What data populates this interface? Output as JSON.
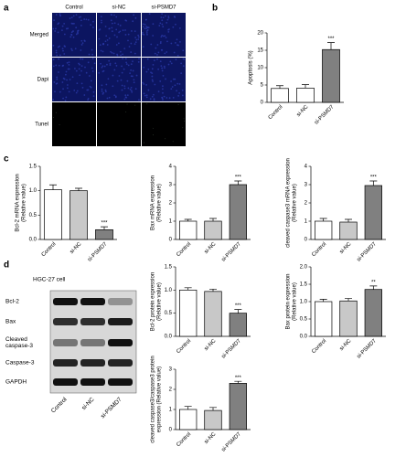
{
  "panel_labels": [
    "a",
    "b",
    "c",
    "d"
  ],
  "microscopy": {
    "columns": [
      "Control",
      "si-NC",
      "si-PSMD7"
    ],
    "rows": [
      "Merged",
      "Dapi",
      "Tunel"
    ]
  },
  "blot": {
    "title": "HGC-27 cell",
    "rows": [
      "Bcl-2",
      "Bax",
      [
        "Cleaved",
        "caspase-3"
      ],
      "Caspase-3",
      "GAPDH"
    ],
    "lanes": [
      "Control",
      "si-NC",
      "si-PSMD7"
    ]
  },
  "chart_data": [
    {
      "type": "bar",
      "ylabel": [
        "Apoptosis (%)"
      ],
      "categories": [
        "Control",
        "si-NC",
        "si-PSMD7"
      ],
      "values": [
        4,
        4.1,
        15.2
      ],
      "errors": [
        0.8,
        1,
        2
      ],
      "value_annotations": [
        null,
        null,
        "***"
      ],
      "colors": [
        "#ffffff",
        "#ffffff",
        "#808080"
      ],
      "ylim": [
        0,
        20
      ],
      "yticks": [
        0,
        5,
        10,
        15,
        20
      ]
    },
    {
      "type": "bar",
      "ylabel": [
        "Bcl-2 mRNA expression",
        "(Relative value)"
      ],
      "categories": [
        "Control",
        "si-NC",
        "si-PSMD7"
      ],
      "values": [
        1.02,
        1,
        0.2
      ],
      "errors": [
        0.1,
        0.05,
        0.06
      ],
      "value_annotations": [
        null,
        null,
        "***"
      ],
      "colors": [
        "#ffffff",
        "#c8c8c8",
        "#808080"
      ],
      "ylim": [
        0,
        1.5
      ],
      "yticks": [
        {
          "value": 0,
          "label": "0.0"
        },
        {
          "value": 0.5,
          "label": "0.5"
        },
        {
          "value": 1,
          "label": "1.0"
        },
        {
          "value": 1.5,
          "label": "1.5"
        }
      ]
    },
    {
      "type": "bar",
      "ylabel": [
        "Bax mRNA expression",
        "(Relative value)"
      ],
      "categories": [
        "Control",
        "si-NC",
        "si-PSMD7"
      ],
      "values": [
        1,
        1,
        3
      ],
      "errors": [
        0.1,
        0.15,
        0.2
      ],
      "value_annotations": [
        null,
        null,
        "***"
      ],
      "colors": [
        "#ffffff",
        "#c8c8c8",
        "#808080"
      ],
      "ylim": [
        0,
        4
      ],
      "yticks": [
        0,
        1,
        2,
        3,
        4
      ]
    },
    {
      "type": "bar",
      "ylabel": [
        "cleaved caspase3 mRNA expression",
        "(Relative value)"
      ],
      "categories": [
        "Control",
        "si-NC",
        "si-PSMD7"
      ],
      "values": [
        1,
        0.95,
        2.95
      ],
      "errors": [
        0.15,
        0.15,
        0.25
      ],
      "value_annotations": [
        null,
        null,
        "***"
      ],
      "colors": [
        "#ffffff",
        "#c8c8c8",
        "#808080"
      ],
      "ylim": [
        0,
        4
      ],
      "yticks": [
        0,
        1,
        2,
        3,
        4
      ]
    },
    {
      "type": "bar",
      "ylabel": [
        "Bcl-2 protein expression",
        "(Relative value)"
      ],
      "categories": [
        "Control",
        "si-NC",
        "si-PSMD7"
      ],
      "values": [
        1,
        0.97,
        0.5
      ],
      "errors": [
        0.05,
        0.05,
        0.08
      ],
      "value_annotations": [
        null,
        null,
        "***"
      ],
      "colors": [
        "#ffffff",
        "#c8c8c8",
        "#808080"
      ],
      "ylim": [
        0,
        1.5
      ],
      "yticks": [
        {
          "value": 0,
          "label": "0.0"
        },
        {
          "value": 0.5,
          "label": "0.5"
        },
        {
          "value": 1,
          "label": "1.0"
        },
        {
          "value": 1.5,
          "label": "1.5"
        }
      ]
    },
    {
      "type": "bar",
      "ylabel": [
        "Bax protein expression",
        "(Relative value)"
      ],
      "categories": [
        "Control",
        "si-NC",
        "si-PSMD7"
      ],
      "values": [
        1,
        1.02,
        1.35
      ],
      "errors": [
        0.07,
        0.07,
        0.1
      ],
      "value_annotations": [
        null,
        null,
        "**"
      ],
      "colors": [
        "#ffffff",
        "#c8c8c8",
        "#808080"
      ],
      "ylim": [
        0,
        2
      ],
      "yticks": [
        {
          "value": 0,
          "label": "0.0"
        },
        {
          "value": 0.5,
          "label": "0.5"
        },
        {
          "value": 1,
          "label": "1.0"
        },
        {
          "value": 1.5,
          "label": "1.5"
        },
        {
          "value": 2,
          "label": "2.0"
        }
      ]
    },
    {
      "type": "bar",
      "ylabel": [
        "cleaved caspase3/caspase3 protein",
        "expression (Relative value)"
      ],
      "categories": [
        "Control",
        "si-NC",
        "si-PSMD7"
      ],
      "values": [
        1,
        0.95,
        2.3
      ],
      "errors": [
        0.15,
        0.15,
        0.1
      ],
      "value_annotations": [
        null,
        null,
        "***"
      ],
      "colors": [
        "#ffffff",
        "#c8c8c8",
        "#808080"
      ],
      "ylim": [
        0,
        3
      ],
      "yticks": [
        0,
        1,
        2,
        3
      ]
    }
  ]
}
